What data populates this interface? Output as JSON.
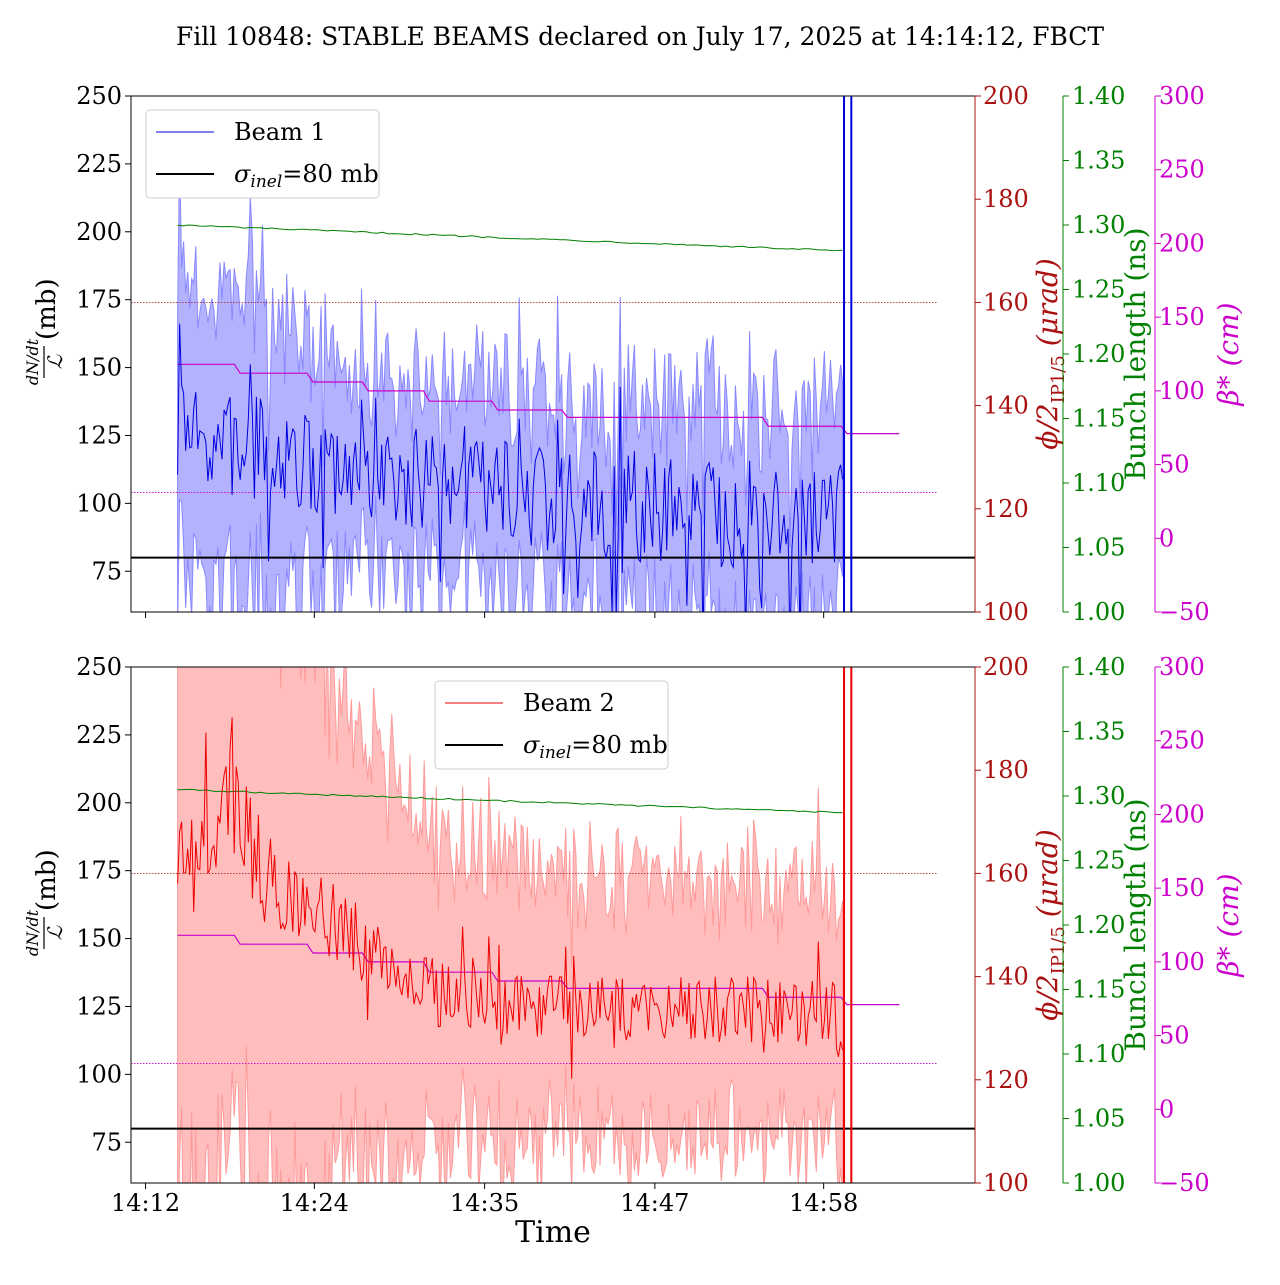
{
  "chart_data": {
    "type": "line",
    "title": "Fill 10848: STABLE BEAMS declared on July 17, 2025 at 14:14:12, FBCT",
    "xlabel": "Time",
    "x_tick_labels": [
      "14:12",
      "14:24",
      "14:35",
      "14:47",
      "14:58"
    ],
    "x_tick_minutes": [
      12.0,
      23.6,
      35.3,
      47.0,
      58.6
    ],
    "x_range_minutes": [
      11.0,
      69.0
    ],
    "axes": {
      "left": {
        "label_fraction_top": "dN/dt",
        "label_fraction_bottom": "ℒ",
        "label_unit": "(mb)",
        "ylim": [
          60,
          250
        ],
        "ticks": [
          75,
          100,
          125,
          150,
          175,
          200,
          225,
          250
        ],
        "color": "#000000"
      },
      "crossing_angle": {
        "label": "ϕ/2IP1/5 (μrad)",
        "label_main": "ϕ/2",
        "label_sub": "IP1/5",
        "label_unit": "(μrad)",
        "ylim": [
          100,
          200
        ],
        "ticks": [
          100,
          120,
          140,
          160,
          180,
          200
        ],
        "color": "#aa1111"
      },
      "bunch_length": {
        "label": "Bunch length (ns)",
        "ylim": [
          1.0,
          1.4
        ],
        "ticks": [
          1.0,
          1.05,
          1.1,
          1.15,
          1.2,
          1.25,
          1.3,
          1.35,
          1.4
        ],
        "tick_labels": [
          "1.00",
          "1.05",
          "1.10",
          "1.15",
          "1.20",
          "1.25",
          "1.30",
          "1.35",
          "1.40"
        ],
        "color": "#008000"
      },
      "beta_star": {
        "label": "β* (cm)",
        "ylim": [
          -50,
          300
        ],
        "ticks": [
          -50,
          0,
          50,
          100,
          150,
          200,
          250,
          300
        ],
        "tick_labels": [
          "−50",
          "0",
          "50",
          "100",
          "150",
          "200",
          "250",
          "300"
        ],
        "color": "#cc00cc"
      }
    },
    "panels": [
      {
        "beam_label": "Beam 1",
        "beam_color": "#0000dd",
        "band_color": "#8888ff",
        "sigma_label": "σinel=80 mb",
        "sigma_value": 80,
        "legend_position": "upper-left",
        "seed": 7,
        "envelope": [
          [
            14.2,
            121
          ],
          [
            16,
            122
          ],
          [
            18,
            121
          ],
          [
            20,
            119
          ],
          [
            22,
            117
          ],
          [
            24,
            113
          ],
          [
            26,
            111
          ],
          [
            28,
            110
          ],
          [
            30,
            108
          ],
          [
            32,
            107
          ],
          [
            34,
            105
          ],
          [
            36,
            103
          ],
          [
            40,
            101
          ],
          [
            44,
            99
          ],
          [
            48,
            98
          ],
          [
            52,
            97
          ],
          [
            56,
            96
          ],
          [
            59.9,
            95
          ]
        ],
        "noise_amp": [
          [
            14.2,
            20
          ],
          [
            20,
            20
          ],
          [
            24,
            17
          ],
          [
            26,
            15
          ],
          [
            30,
            17
          ],
          [
            38,
            20
          ],
          [
            45,
            21
          ],
          [
            59.9,
            20
          ]
        ],
        "band_halfwidth": [
          [
            14.2,
            55
          ],
          [
            20,
            55
          ],
          [
            24,
            45
          ],
          [
            26,
            35
          ],
          [
            32,
            35
          ],
          [
            40,
            38
          ],
          [
            50,
            40
          ],
          [
            59.9,
            40
          ]
        ],
        "crossing_angle_ref": 160,
        "beta_ref": 31,
        "bunch_length": [
          [
            14.2,
            1.3
          ],
          [
            59.9,
            1.28
          ]
        ],
        "beta_steps": [
          [
            14.2,
            118
          ],
          [
            18.5,
            112
          ],
          [
            23.5,
            106
          ],
          [
            27.3,
            100
          ],
          [
            31.5,
            93
          ],
          [
            36.2,
            87
          ],
          [
            41,
            82
          ],
          [
            54.8,
            76
          ],
          [
            60.2,
            71
          ],
          [
            63.8,
            71
          ]
        ],
        "vertical_lines": [
          60.0,
          60.5
        ],
        "vline_ymax": 260
      },
      {
        "beam_label": "Beam 2",
        "beam_color": "#ee0000",
        "band_color": "#ff9a9a",
        "sigma_label": "σinel=80 mb",
        "sigma_value": 80,
        "legend_position": "upper-center",
        "seed": 13,
        "envelope": [
          [
            14.2,
            178
          ],
          [
            16,
            185
          ],
          [
            18,
            200
          ],
          [
            20,
            175
          ],
          [
            22,
            165
          ],
          [
            24,
            160
          ],
          [
            26,
            152
          ],
          [
            28,
            143
          ],
          [
            30,
            136
          ],
          [
            32,
            130
          ],
          [
            34,
            127
          ],
          [
            38,
            126
          ],
          [
            44,
            124
          ],
          [
            50,
            124
          ],
          [
            55,
            123
          ],
          [
            59.9,
            120
          ]
        ],
        "noise_amp": [
          [
            14.2,
            15
          ],
          [
            18,
            22
          ],
          [
            22,
            15
          ],
          [
            30,
            13
          ],
          [
            40,
            12
          ],
          [
            50,
            12
          ],
          [
            59.9,
            14
          ]
        ],
        "band_halfwidth": [
          [
            14.2,
            130
          ],
          [
            20,
            120
          ],
          [
            24,
            100
          ],
          [
            28,
            75
          ],
          [
            32,
            55
          ],
          [
            40,
            50
          ],
          [
            50,
            48
          ],
          [
            59.9,
            45
          ]
        ],
        "crossing_angle_ref": 160,
        "beta_ref": 31,
        "bunch_length": [
          [
            14.2,
            1.305
          ],
          [
            59.9,
            1.287
          ]
        ],
        "beta_steps": [
          [
            14.2,
            118
          ],
          [
            18.5,
            112
          ],
          [
            23.5,
            106
          ],
          [
            27.3,
            100
          ],
          [
            31.5,
            93
          ],
          [
            36.2,
            87
          ],
          [
            41,
            82
          ],
          [
            54.8,
            76
          ],
          [
            60.2,
            71
          ],
          [
            63.8,
            71
          ]
        ],
        "vertical_lines": [
          60.0,
          60.5
        ],
        "vline_ymax": 260
      }
    ]
  }
}
